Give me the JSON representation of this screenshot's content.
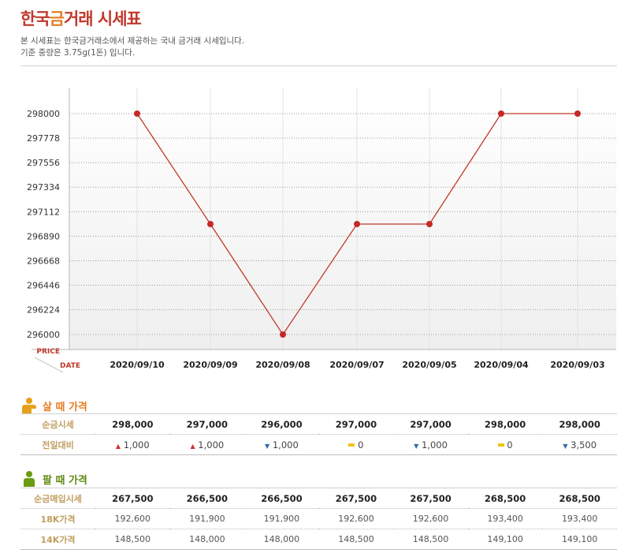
{
  "header": {
    "title_part1": "한국",
    "title_part2": "금",
    "title_part3": "거래 시세표",
    "desc1": "본 시세표는 한국금거래소에서 제공하는 국내 금거래 시세입니다.",
    "desc2": "기준 중량은 3.75g(1돈) 입니다."
  },
  "colors": {
    "line": "#c0392b",
    "point": "#c62828",
    "accent": "#e67e22",
    "green": "#5f8a12"
  },
  "chart_data": {
    "type": "line",
    "categories": [
      "2020/09/10",
      "2020/09/09",
      "2020/09/08",
      "2020/09/07",
      "2020/09/05",
      "2020/09/04",
      "2020/09/03"
    ],
    "values": [
      298000,
      297000,
      296000,
      297000,
      297000,
      298000,
      298000
    ],
    "yticks": [
      298000,
      297778,
      297556,
      297334,
      297112,
      296890,
      296668,
      296446,
      296224,
      296000
    ],
    "ylim": [
      296000,
      298000
    ],
    "ylabel": "PRICE",
    "xlabel": "DATE",
    "grid": true
  },
  "buy": {
    "title": "살 때 가격",
    "row1_label": "순금시세",
    "row1": [
      "298,000",
      "297,000",
      "296,000",
      "297,000",
      "297,000",
      "298,000",
      "298,000"
    ],
    "row2_label": "전일대비",
    "row2": [
      {
        "dir": "up",
        "val": "1,000"
      },
      {
        "dir": "up",
        "val": "1,000"
      },
      {
        "dir": "down",
        "val": "1,000"
      },
      {
        "dir": "flat",
        "val": "0"
      },
      {
        "dir": "down",
        "val": "1,000"
      },
      {
        "dir": "flat",
        "val": "0"
      },
      {
        "dir": "down",
        "val": "3,500"
      }
    ]
  },
  "sell": {
    "title": "팔 때 가격",
    "row1_label": "순금매입시세",
    "row1": [
      "267,500",
      "266,500",
      "266,500",
      "267,500",
      "267,500",
      "268,500",
      "268,500"
    ],
    "row2_label": "18K가격",
    "row2": [
      "192,600",
      "191,900",
      "191,900",
      "192,600",
      "192,600",
      "193,400",
      "193,400"
    ],
    "row3_label": "14K가격",
    "row3": [
      "148,500",
      "148,000",
      "148,000",
      "148,500",
      "148,500",
      "149,100",
      "149,100"
    ]
  }
}
